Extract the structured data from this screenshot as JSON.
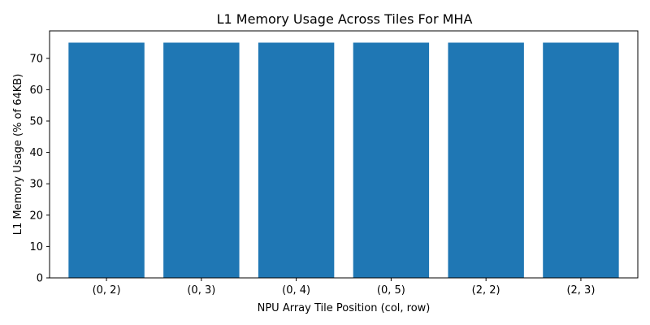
{
  "chart_data": {
    "type": "bar",
    "title": "L1 Memory Usage Across Tiles For MHA",
    "xlabel": "NPU Array Tile Position (col, row)",
    "ylabel": "L1 Memory Usage (% of 64KB)",
    "categories": [
      "(0, 2)",
      "(0, 3)",
      "(0, 4)",
      "(0, 5)",
      "(2, 2)",
      "(2, 3)"
    ],
    "values": [
      75,
      75,
      75,
      75,
      75,
      75
    ],
    "ylim": [
      0,
      78.75
    ],
    "yticks": [
      0,
      10,
      20,
      30,
      40,
      50,
      60,
      70
    ],
    "grid": false,
    "bar_color": "#1f77b4"
  }
}
